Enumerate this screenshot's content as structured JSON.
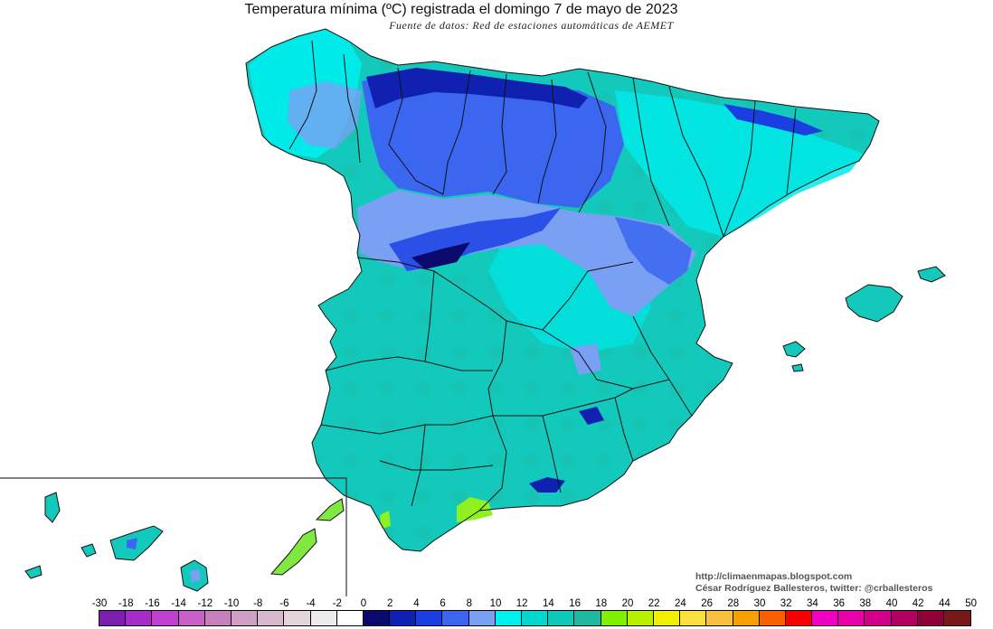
{
  "title": "Temperatura mínima (ºC) registrada el domingo 7 de mayo de 2023",
  "subtitle": "Fuente de datos: Red de estaciones automáticas de AEMET",
  "credit": {
    "line1": "http://climaenmapas.blogspot.com",
    "line2": "César Rodríguez Ballesteros, twitter: @crballesteros"
  },
  "legend": {
    "ticks": [
      "-30",
      "-18",
      "-16",
      "-14",
      "-12",
      "-10",
      "-8",
      "-6",
      "-4",
      "-2",
      "0",
      "2",
      "4",
      "6",
      "8",
      "10",
      "12",
      "14",
      "16",
      "18",
      "20",
      "22",
      "24",
      "26",
      "28",
      "30",
      "32",
      "34",
      "36",
      "38",
      "40",
      "42",
      "44",
      "50"
    ],
    "colors": [
      "#7a1fb0",
      "#a42cc8",
      "#c040d0",
      "#c860c8",
      "#c880bc",
      "#d0a0c4",
      "#d8b8cc",
      "#e4d4dc",
      "#ececec",
      "#ffffff",
      "#0a0a6e",
      "#1020b0",
      "#1a3ee0",
      "#3a66f0",
      "#7aa0f4",
      "#00f0f0",
      "#00d8d0",
      "#10c8b8",
      "#20b8a0",
      "#80f000",
      "#b8f000",
      "#f0f000",
      "#f8e040",
      "#f8c040",
      "#f8a000",
      "#f86000",
      "#f80000",
      "#f000c0",
      "#e800a8",
      "#d00088",
      "#b00060",
      "#900038",
      "#781818"
    ]
  }
}
